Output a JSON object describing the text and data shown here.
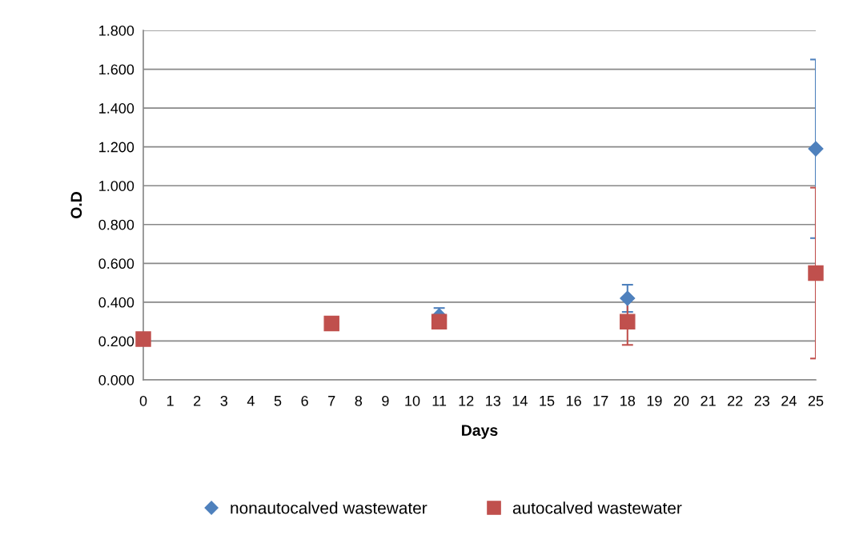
{
  "chart_data": {
    "type": "scatter",
    "xlabel": "Days",
    "ylabel": "O.D",
    "x": [
      0,
      7,
      11,
      18,
      25
    ],
    "series": [
      {
        "name": "nonautocalved wastewater",
        "color": "#4f81bd",
        "marker": "diamond",
        "values": [
          null,
          null,
          0.33,
          0.42,
          1.19
        ],
        "errors": [
          null,
          null,
          0.04,
          0.07,
          0.46
        ]
      },
      {
        "name": "autocalved wastewater",
        "color": "#c0504d",
        "marker": "square",
        "values": [
          0.21,
          0.29,
          0.3,
          0.3,
          0.55
        ],
        "errors": [
          null,
          null,
          null,
          0.12,
          0.44
        ]
      }
    ],
    "xlim": [
      0,
      25
    ],
    "xticks": [
      0,
      1,
      2,
      3,
      4,
      5,
      6,
      7,
      8,
      9,
      10,
      11,
      12,
      13,
      14,
      15,
      16,
      17,
      18,
      19,
      20,
      21,
      22,
      23,
      24,
      25
    ],
    "ylim": [
      0,
      1.8
    ],
    "yticks": [
      {
        "value": 0,
        "label": "0.000"
      },
      {
        "value": 0.2,
        "label": "0.200"
      },
      {
        "value": 0.4,
        "label": "0.400"
      },
      {
        "value": 0.6,
        "label": "0.600"
      },
      {
        "value": 0.8,
        "label": "0.800"
      },
      {
        "value": 1.0,
        "label": "1.000"
      },
      {
        "value": 1.2,
        "label": "1.200"
      },
      {
        "value": 1.4,
        "label": "1.400"
      },
      {
        "value": 1.6,
        "label": "1.600"
      },
      {
        "value": 1.8,
        "label": "1.800"
      }
    ],
    "grid": "y",
    "legend": "bottom"
  }
}
